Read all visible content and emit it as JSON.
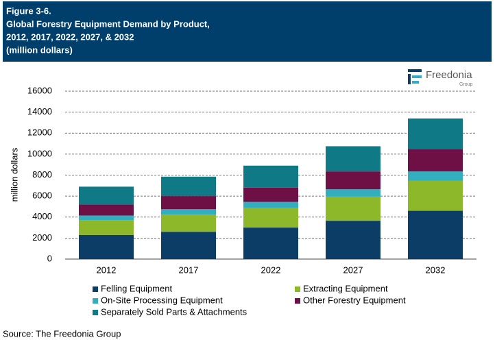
{
  "chart_data": {
    "type": "stacked_bar",
    "figure_label": "Figure 3-6.",
    "title_lines": [
      "Global Forestry Equipment Demand by Product,",
      "2012, 2017, 2022, 2027, & 2032",
      "(million dollars)"
    ],
    "logo": {
      "name": "Freedonia",
      "sub": "Group"
    },
    "y_label": "million dollars",
    "categories": [
      "2012",
      "2017",
      "2022",
      "2027",
      "2032"
    ],
    "series": [
      {
        "name": "Felling Equipment",
        "color": "#0b3d66",
        "values": [
          2300,
          2600,
          3000,
          3650,
          4600
        ]
      },
      {
        "name": "Extracting Equipment",
        "color": "#8db82a",
        "values": [
          1400,
          1650,
          1850,
          2300,
          2850
        ]
      },
      {
        "name": "On-Site Processing Equipment",
        "color": "#33aebf",
        "values": [
          450,
          500,
          600,
          700,
          900
        ]
      },
      {
        "name": "Other Forestry Equipment",
        "color": "#6e0f46",
        "values": [
          1050,
          1250,
          1350,
          1700,
          2150
        ]
      },
      {
        "name": "Separately Sold Parts & Attachments",
        "color": "#0f7a85",
        "values": [
          1700,
          1850,
          2100,
          2400,
          2900
        ]
      }
    ],
    "ylim": [
      0,
      16000
    ],
    "yticks": [
      0,
      2000,
      4000,
      6000,
      8000,
      10000,
      12000,
      14000,
      16000
    ],
    "grid": true,
    "source": "Source: The Freedonia Group"
  }
}
